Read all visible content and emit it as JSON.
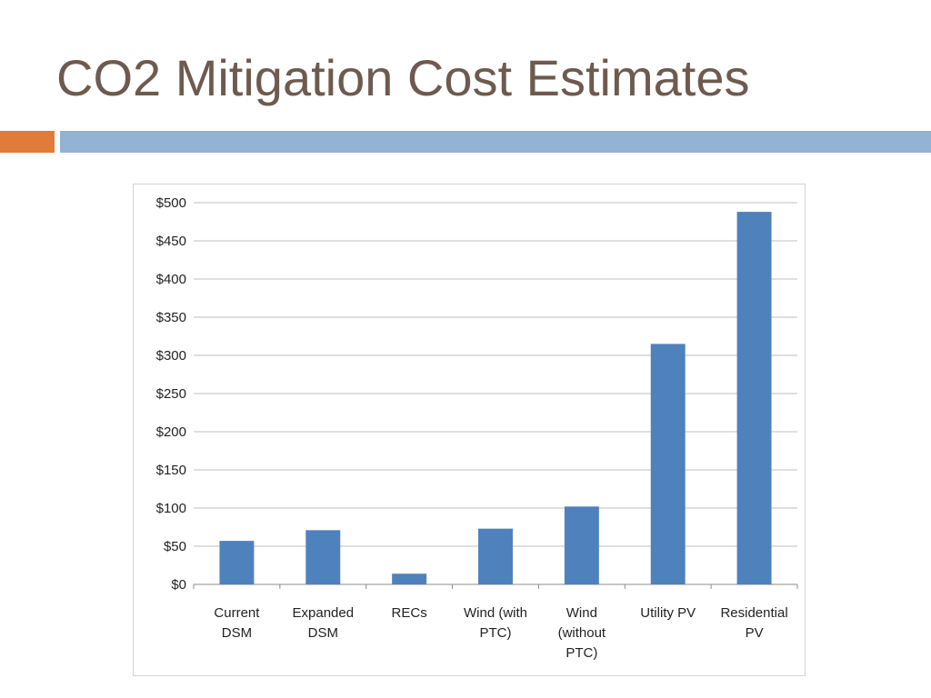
{
  "slide": {
    "title": "CO2 Mitigation Cost Estimates"
  },
  "colors": {
    "title": "#6e5a4e",
    "accent_orange": "#e07b39",
    "accent_blue": "#92b3d4",
    "bar": "#4f81bd",
    "gridline": "#bfbfbf"
  },
  "chart_data": {
    "type": "bar",
    "title": "",
    "xlabel": "",
    "ylabel": "",
    "categories": [
      [
        "Current",
        "DSM"
      ],
      [
        "Expanded",
        "DSM"
      ],
      [
        "RECs"
      ],
      [
        "Wind (with",
        "PTC)"
      ],
      [
        "Wind",
        "(without",
        "PTC)"
      ],
      [
        "Utility PV"
      ],
      [
        "Residential",
        "PV"
      ]
    ],
    "values": [
      57,
      71,
      14,
      73,
      102,
      315,
      488
    ],
    "ylim": [
      0,
      500
    ],
    "y_ticks": [
      {
        "value": 0,
        "label": "$0"
      },
      {
        "value": 50,
        "label": "$50"
      },
      {
        "value": 100,
        "label": "$100"
      },
      {
        "value": 150,
        "label": "$150"
      },
      {
        "value": 200,
        "label": "$200"
      },
      {
        "value": 250,
        "label": "$250"
      },
      {
        "value": 300,
        "label": "$300"
      },
      {
        "value": 350,
        "label": "$350"
      },
      {
        "value": 400,
        "label": "$400"
      },
      {
        "value": 450,
        "label": "$450"
      },
      {
        "value": 500,
        "label": "$500"
      }
    ],
    "grid": true,
    "legend": "none"
  }
}
